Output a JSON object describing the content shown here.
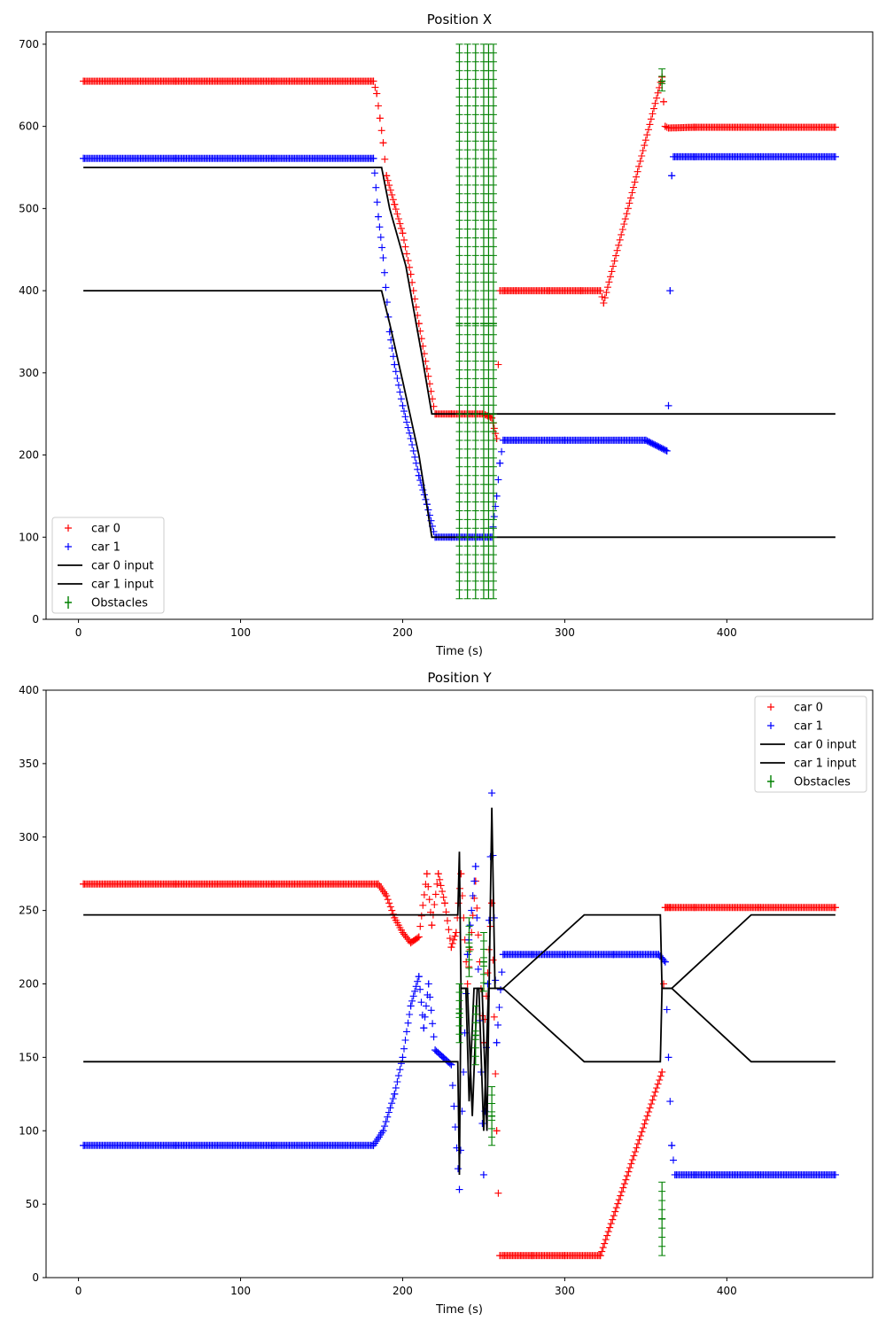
{
  "chart_data": [
    {
      "type": "scatter",
      "title": "Position X",
      "xlabel": "Time (s)",
      "ylabel": "",
      "xlim": [
        -20,
        490
      ],
      "ylim": [
        0,
        715
      ],
      "xticks": [
        "0",
        "100",
        "200",
        "300",
        "400"
      ],
      "xtick_values": [
        0,
        100,
        200,
        300,
        400
      ],
      "yticks": [
        "0",
        "100",
        "200",
        "300",
        "400",
        "500",
        "600",
        "700"
      ],
      "ytick_values": [
        0,
        100,
        200,
        300,
        400,
        500,
        600,
        700
      ],
      "grid": false,
      "legend_position": "lower-left",
      "legend": [
        "car 0",
        "car 1",
        "car 0 input",
        "car 1 input",
        "Obstacles"
      ],
      "series": [
        {
          "name": "car 0",
          "kind": "marker",
          "color": "#ff0000",
          "x": [
            3,
            60,
            120,
            182,
            184,
            186,
            188,
            190,
            195,
            200,
            205,
            210,
            215,
            220,
            230,
            240,
            250,
            255,
            258,
            260,
            262,
            270,
            290,
            310,
            322,
            324,
            360,
            361,
            362,
            364,
            380,
            420,
            467
          ],
          "y": [
            655,
            655,
            655,
            655,
            640,
            610,
            580,
            540,
            505,
            470,
            420,
            360,
            305,
            250,
            250,
            250,
            250,
            245,
            220,
            400,
            400,
            400,
            400,
            400,
            400,
            385,
            660,
            630,
            600,
            598,
            599,
            599,
            599
          ]
        },
        {
          "name": "car 1",
          "kind": "marker",
          "color": "#0000ff",
          "x": [
            3,
            60,
            120,
            182,
            185,
            188,
            192,
            195,
            200,
            205,
            210,
            215,
            220,
            230,
            240,
            250,
            255,
            258,
            260,
            262,
            270,
            300,
            350,
            363,
            364,
            365,
            366,
            367,
            380,
            420,
            467
          ],
          "y": [
            561,
            561,
            561,
            561,
            490,
            440,
            350,
            310,
            260,
            220,
            175,
            140,
            100,
            100,
            100,
            100,
            100,
            150,
            190,
            218,
            218,
            218,
            218,
            205,
            260,
            400,
            540,
            563,
            563,
            563,
            563
          ]
        },
        {
          "name": "car 0 input",
          "kind": "line",
          "color": "#000000",
          "x": [
            3,
            187,
            192,
            202,
            212,
            218,
            467
          ],
          "y": [
            550,
            550,
            500,
            430,
            320,
            250,
            250
          ]
        },
        {
          "name": "car 1 input",
          "kind": "line",
          "color": "#000000",
          "x": [
            3,
            187,
            192,
            200,
            210,
            218,
            467
          ],
          "y": [
            400,
            400,
            360,
            290,
            200,
            100,
            100
          ]
        },
        {
          "name": "Obstacles",
          "kind": "errorbar",
          "color": "#008000",
          "x": [
            235,
            240,
            245,
            250,
            253,
            256,
            360
          ],
          "y": [
            360,
            360,
            360,
            360,
            360,
            360,
            655
          ],
          "yerr_low": [
            335,
            335,
            335,
            335,
            335,
            335,
            12
          ],
          "yerr_high": [
            340,
            340,
            340,
            340,
            340,
            340,
            15
          ]
        }
      ]
    },
    {
      "type": "scatter",
      "title": "Position Y",
      "xlabel": "Time (s)",
      "ylabel": "",
      "xlim": [
        -20,
        490
      ],
      "ylim": [
        0,
        400
      ],
      "xticks": [
        "0",
        "100",
        "200",
        "300",
        "400"
      ],
      "xtick_values": [
        0,
        100,
        200,
        300,
        400
      ],
      "yticks": [
        "0",
        "50",
        "100",
        "150",
        "200",
        "250",
        "300",
        "350",
        "400"
      ],
      "ytick_values": [
        0,
        50,
        100,
        150,
        200,
        250,
        300,
        350,
        400
      ],
      "grid": false,
      "legend_position": "upper-right",
      "legend": [
        "car 0",
        "car 1",
        "car 0 input",
        "car 1 input",
        "Obstacles"
      ],
      "series": [
        {
          "name": "car 0",
          "kind": "marker",
          "color": "#ff0000",
          "x": [
            3,
            60,
            120,
            185,
            190,
            195,
            200,
            205,
            210,
            215,
            218,
            222,
            226,
            230,
            233,
            236,
            240,
            245,
            250,
            255,
            258,
            260,
            262,
            280,
            300,
            322,
            360,
            361,
            362,
            365,
            380,
            420,
            467
          ],
          "y": [
            268,
            268,
            268,
            268,
            260,
            245,
            235,
            228,
            232,
            275,
            240,
            275,
            255,
            225,
            235,
            275,
            200,
            270,
            160,
            255,
            100,
            15,
            15,
            15,
            15,
            15,
            140,
            200,
            252,
            252,
            252,
            252,
            252
          ]
        },
        {
          "name": "car 1",
          "kind": "marker",
          "color": "#0000ff",
          "x": [
            3,
            60,
            120,
            182,
            188,
            195,
            200,
            205,
            210,
            213,
            216,
            220,
            225,
            230,
            235,
            240,
            245,
            250,
            255,
            258,
            262,
            280,
            300,
            330,
            358,
            362,
            364,
            366,
            368,
            380,
            420,
            467
          ],
          "y": [
            90,
            90,
            90,
            90,
            100,
            125,
            150,
            185,
            205,
            170,
            200,
            155,
            150,
            145,
            60,
            220,
            280,
            70,
            330,
            160,
            220,
            220,
            220,
            220,
            220,
            215,
            150,
            90,
            70,
            70,
            70,
            70
          ]
        },
        {
          "name": "car 0 input",
          "kind": "line",
          "color": "#000000",
          "x": [
            3,
            234,
            235,
            236,
            237,
            240,
            243,
            246,
            249,
            252,
            255,
            257,
            262,
            312,
            323,
            359,
            360,
            366,
            415,
            467
          ],
          "y": [
            247,
            247,
            290,
            197,
            197,
            197,
            110,
            197,
            197,
            100,
            320,
            197,
            197,
            247,
            247,
            247,
            197,
            197,
            247,
            247
          ]
        },
        {
          "name": "car 1 input",
          "kind": "line",
          "color": "#000000",
          "x": [
            3,
            234,
            235,
            236,
            239,
            241,
            244,
            247,
            250,
            253,
            256,
            258,
            262,
            312,
            323,
            359,
            360,
            366,
            415,
            467
          ],
          "y": [
            147,
            147,
            70,
            197,
            197,
            120,
            197,
            197,
            100,
            197,
            197,
            197,
            197,
            147,
            147,
            147,
            197,
            197,
            147,
            147
          ]
        },
        {
          "name": "Obstacles",
          "kind": "errorbar",
          "color": "#008000",
          "x": [
            235,
            241,
            245,
            250,
            255,
            360
          ],
          "y": [
            180,
            225,
            165,
            215,
            110,
            40
          ],
          "yerr_low": [
            20,
            20,
            20,
            20,
            20,
            25
          ],
          "yerr_high": [
            20,
            20,
            20,
            20,
            20,
            25
          ]
        }
      ]
    }
  ]
}
